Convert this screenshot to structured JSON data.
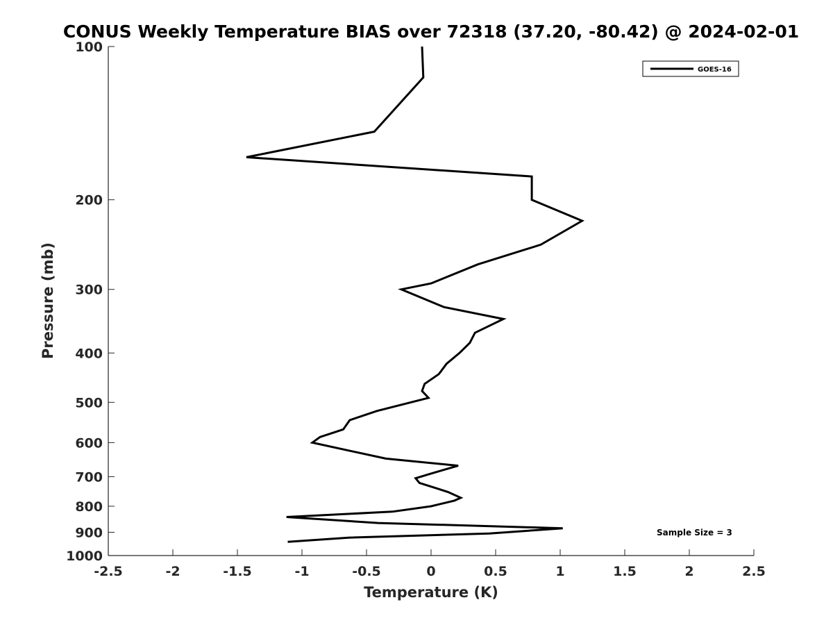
{
  "chart_data": {
    "type": "line",
    "title": "CONUS Weekly Temperature BIAS over 72318 (37.20, -80.42) @ 2024-02-01",
    "xlabel": "Temperature (K)",
    "ylabel": "Pressure (mb)",
    "xlim": [
      -2.5,
      2.5
    ],
    "ylim": [
      1000,
      100
    ],
    "y_scale": "log",
    "y_reversed": true,
    "grid": false,
    "legend_position": "top-right",
    "x_ticks": [
      -2.5,
      -2,
      -1.5,
      -1,
      -0.5,
      0,
      0.5,
      1,
      1.5,
      2,
      2.5
    ],
    "x_tick_labels": [
      "-2.5",
      "-2",
      "-1.5",
      "-1",
      "-0.5",
      "0",
      "0.5",
      "1",
      "1.5",
      "2",
      "2.5"
    ],
    "y_ticks": [
      100,
      200,
      300,
      400,
      500,
      600,
      700,
      800,
      900,
      1000
    ],
    "y_tick_labels": [
      "100",
      "200",
      "300",
      "400",
      "500",
      "600",
      "700",
      "800",
      "900",
      "1000"
    ],
    "series": [
      {
        "name": "GOES-16",
        "color": "#000000",
        "x": [
          -0.07,
          -0.06,
          -0.44,
          -1.43,
          0.78,
          0.78,
          1.17,
          0.85,
          0.36,
          0.0,
          -0.23,
          0.1,
          0.56,
          0.34,
          0.3,
          0.22,
          0.12,
          0.06,
          -0.05,
          -0.07,
          -0.02,
          -0.42,
          -0.63,
          -0.68,
          -0.86,
          -0.92,
          -0.35,
          0.21,
          0.0,
          -0.12,
          -0.09,
          0.13,
          0.23,
          0.18,
          0.0,
          -0.3,
          -1.12,
          -0.41,
          1.02,
          0.45,
          -0.63,
          -1.11
        ],
        "y": [
          100,
          115,
          147,
          165,
          180,
          200,
          220,
          245,
          268,
          292,
          300,
          325,
          343,
          365,
          382,
          400,
          420,
          440,
          460,
          475,
          490,
          520,
          542,
          565,
          585,
          600,
          645,
          666,
          690,
          705,
          720,
          750,
          770,
          780,
          800,
          820,
          840,
          863,
          884,
          905,
          922,
          940
        ]
      }
    ],
    "annotation": "Sample Size = 3"
  }
}
